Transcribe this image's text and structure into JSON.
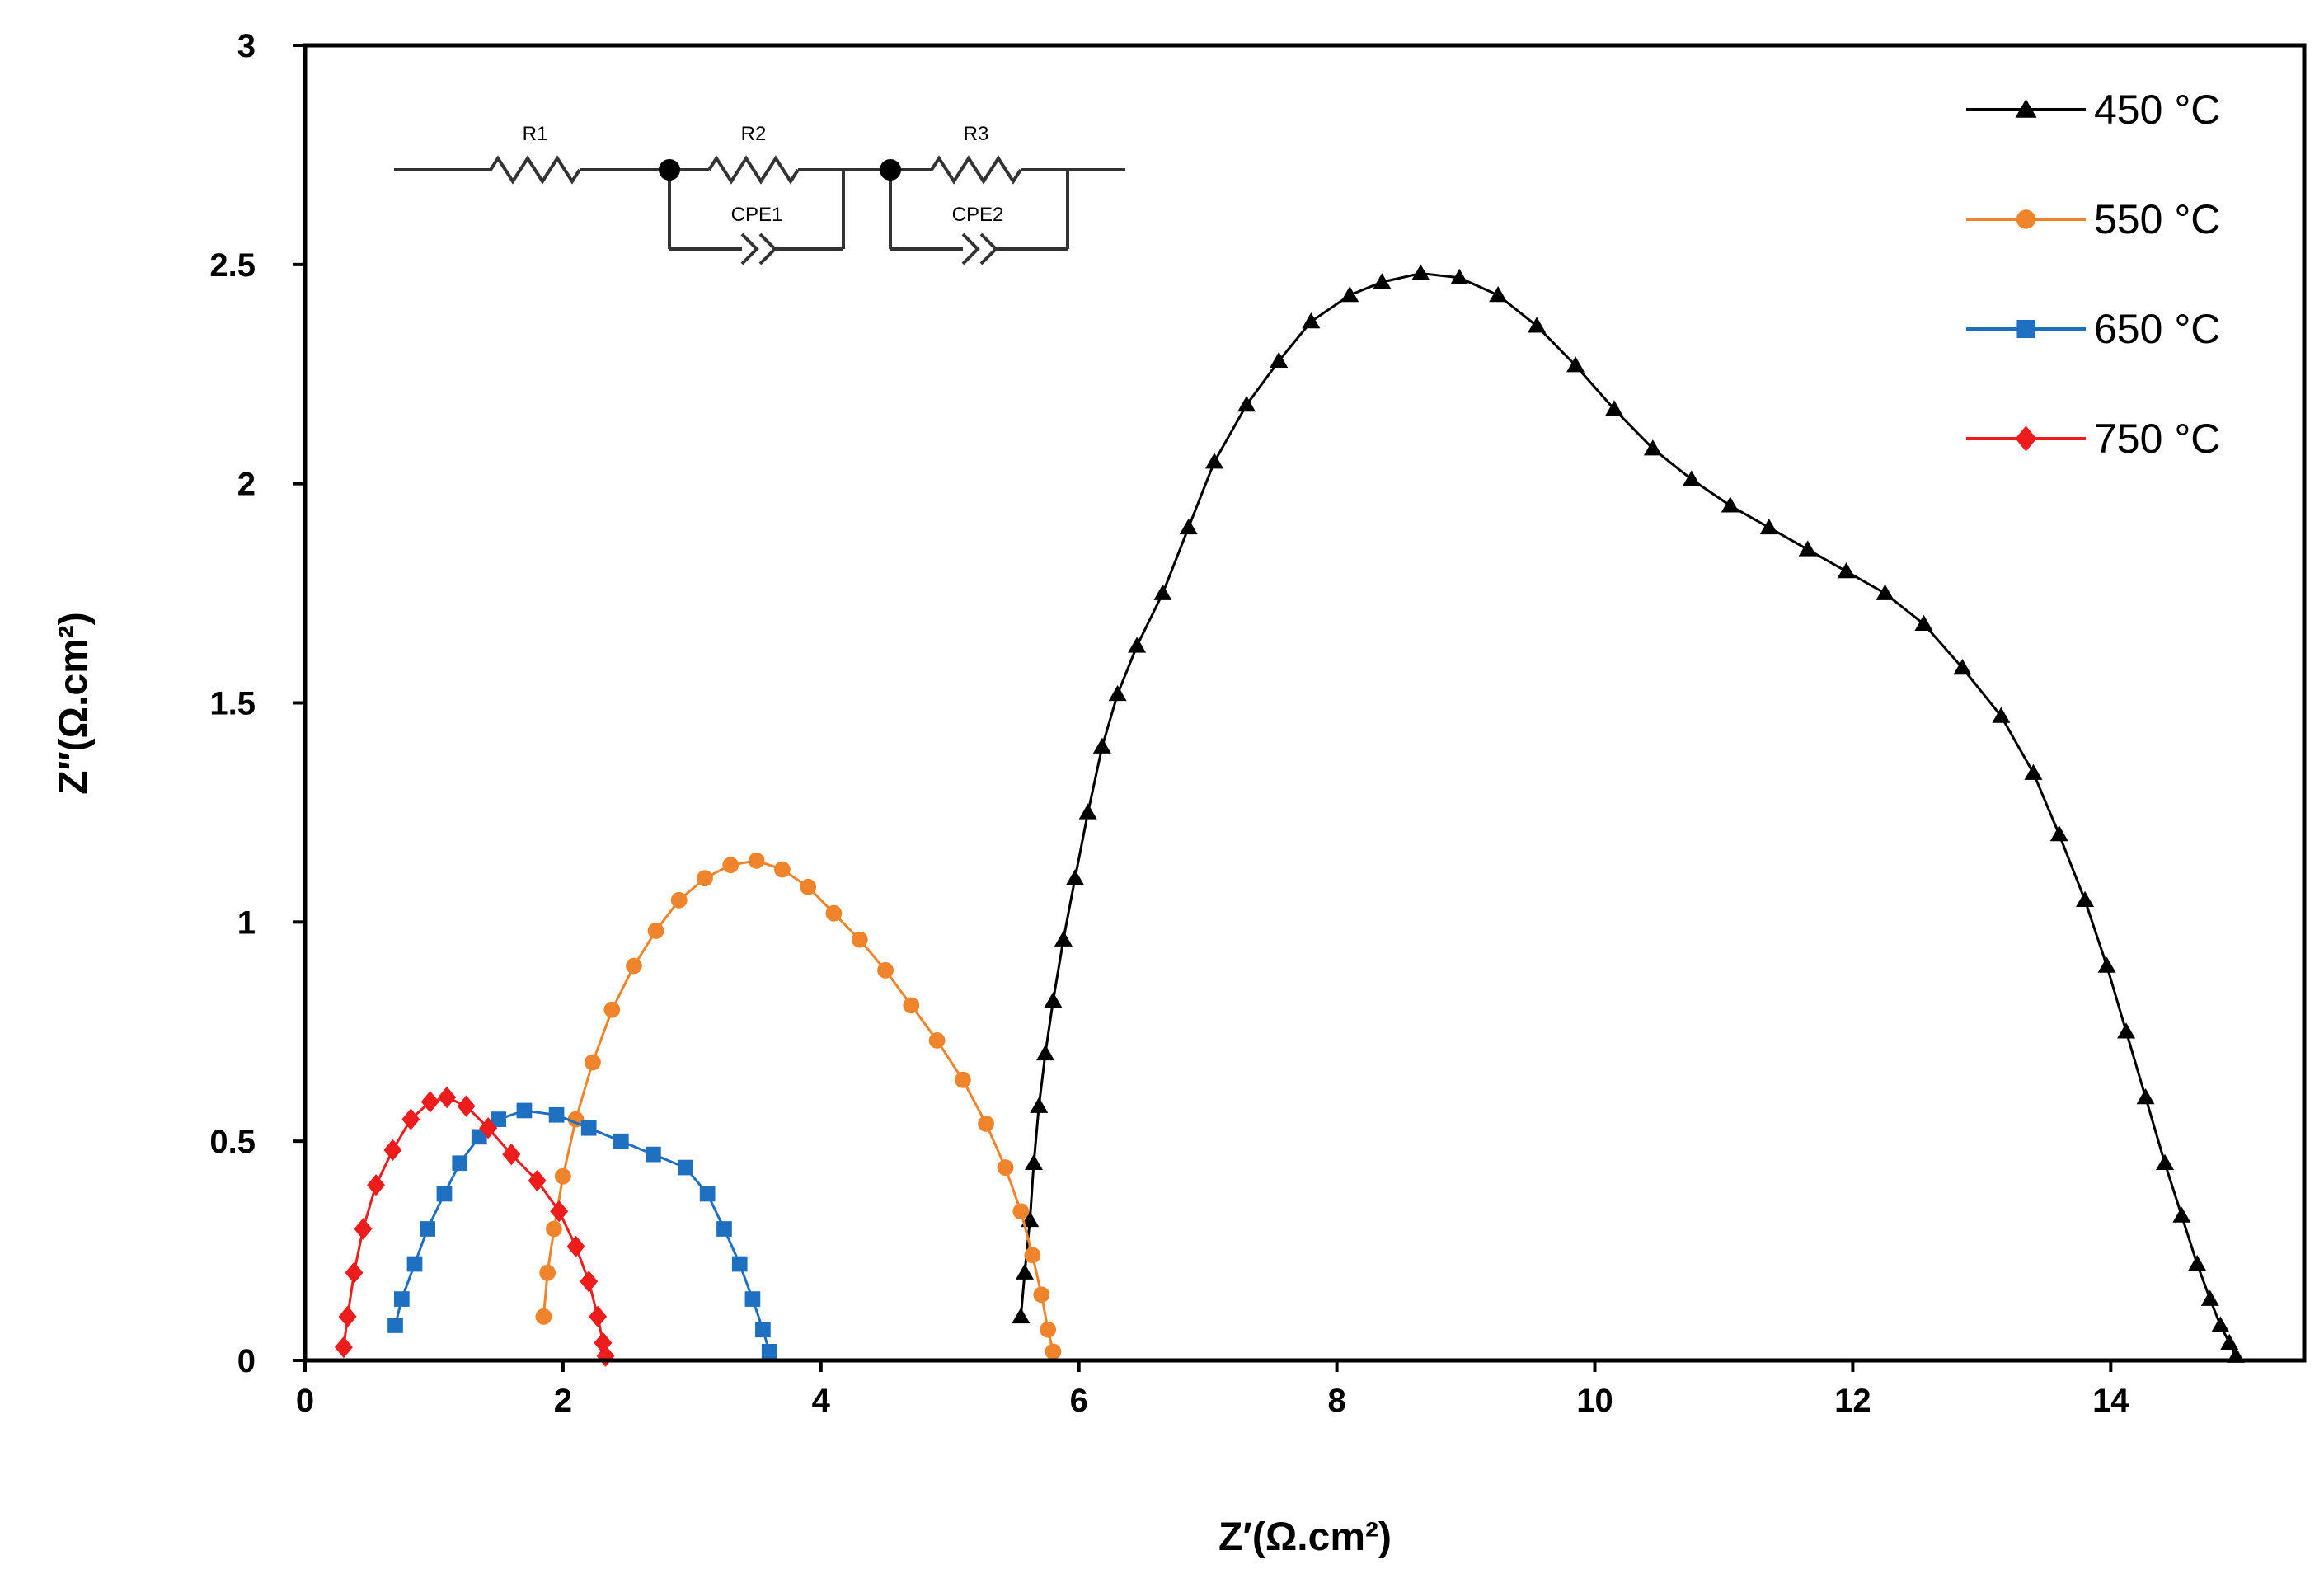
{
  "chart_data": {
    "type": "scatter",
    "xlabel": "Z′(Ω.cm²)",
    "ylabel": "Z″(Ω.cm²)",
    "xlim": [
      0,
      15.5
    ],
    "ylim": [
      0,
      3
    ],
    "x_ticks": [
      0,
      2,
      4,
      6,
      8,
      10,
      12,
      14
    ],
    "y_ticks": [
      0,
      0.5,
      1,
      1.5,
      2,
      2.5,
      3
    ],
    "x_tick_labels": [
      "0",
      "2",
      "4",
      "6",
      "8",
      "10",
      "12",
      "14"
    ],
    "y_tick_labels": [
      "0",
      "0.5",
      "1",
      "1.5",
      "2",
      "2.5",
      "3"
    ],
    "grid": false,
    "legend_position": "top-right",
    "series": [
      {
        "name": "450 °C",
        "color": "#000000",
        "marker": "triangle",
        "points": [
          [
            5.55,
            0.1
          ],
          [
            5.58,
            0.2
          ],
          [
            5.62,
            0.32
          ],
          [
            5.65,
            0.45
          ],
          [
            5.69,
            0.58
          ],
          [
            5.74,
            0.7
          ],
          [
            5.8,
            0.82
          ],
          [
            5.88,
            0.96
          ],
          [
            5.97,
            1.1
          ],
          [
            6.07,
            1.25
          ],
          [
            6.18,
            1.4
          ],
          [
            6.3,
            1.52
          ],
          [
            6.45,
            1.63
          ],
          [
            6.65,
            1.75
          ],
          [
            6.85,
            1.9
          ],
          [
            7.05,
            2.05
          ],
          [
            7.3,
            2.18
          ],
          [
            7.55,
            2.28
          ],
          [
            7.8,
            2.37
          ],
          [
            8.1,
            2.43
          ],
          [
            8.35,
            2.46
          ],
          [
            8.65,
            2.48
          ],
          [
            8.95,
            2.47
          ],
          [
            9.25,
            2.43
          ],
          [
            9.55,
            2.36
          ],
          [
            9.85,
            2.27
          ],
          [
            10.15,
            2.17
          ],
          [
            10.45,
            2.08
          ],
          [
            10.75,
            2.01
          ],
          [
            11.05,
            1.95
          ],
          [
            11.35,
            1.9
          ],
          [
            11.65,
            1.85
          ],
          [
            11.95,
            1.8
          ],
          [
            12.25,
            1.75
          ],
          [
            12.55,
            1.68
          ],
          [
            12.85,
            1.58
          ],
          [
            13.15,
            1.47
          ],
          [
            13.4,
            1.34
          ],
          [
            13.6,
            1.2
          ],
          [
            13.8,
            1.05
          ],
          [
            13.97,
            0.9
          ],
          [
            14.12,
            0.75
          ],
          [
            14.27,
            0.6
          ],
          [
            14.42,
            0.45
          ],
          [
            14.55,
            0.33
          ],
          [
            14.67,
            0.22
          ],
          [
            14.77,
            0.14
          ],
          [
            14.85,
            0.08
          ],
          [
            14.92,
            0.04
          ],
          [
            14.97,
            0.01
          ]
        ]
      },
      {
        "name": "550 °C",
        "color": "#f0842c",
        "marker": "circle",
        "points": [
          [
            1.85,
            0.1
          ],
          [
            1.88,
            0.2
          ],
          [
            1.93,
            0.3
          ],
          [
            2.0,
            0.42
          ],
          [
            2.1,
            0.55
          ],
          [
            2.23,
            0.68
          ],
          [
            2.38,
            0.8
          ],
          [
            2.55,
            0.9
          ],
          [
            2.72,
            0.98
          ],
          [
            2.9,
            1.05
          ],
          [
            3.1,
            1.1
          ],
          [
            3.3,
            1.13
          ],
          [
            3.5,
            1.14
          ],
          [
            3.7,
            1.12
          ],
          [
            3.9,
            1.08
          ],
          [
            4.1,
            1.02
          ],
          [
            4.3,
            0.96
          ],
          [
            4.5,
            0.89
          ],
          [
            4.7,
            0.81
          ],
          [
            4.9,
            0.73
          ],
          [
            5.1,
            0.64
          ],
          [
            5.28,
            0.54
          ],
          [
            5.43,
            0.44
          ],
          [
            5.55,
            0.34
          ],
          [
            5.64,
            0.24
          ],
          [
            5.71,
            0.15
          ],
          [
            5.76,
            0.07
          ],
          [
            5.8,
            0.02
          ]
        ]
      },
      {
        "name": "650 °C",
        "color": "#1e6fbf",
        "marker": "square",
        "points": [
          [
            0.7,
            0.08
          ],
          [
            0.75,
            0.14
          ],
          [
            0.85,
            0.22
          ],
          [
            0.95,
            0.3
          ],
          [
            1.08,
            0.38
          ],
          [
            1.2,
            0.45
          ],
          [
            1.35,
            0.51
          ],
          [
            1.5,
            0.55
          ],
          [
            1.7,
            0.57
          ],
          [
            1.95,
            0.56
          ],
          [
            2.2,
            0.53
          ],
          [
            2.45,
            0.5
          ],
          [
            2.7,
            0.47
          ],
          [
            2.95,
            0.44
          ],
          [
            3.12,
            0.38
          ],
          [
            3.25,
            0.3
          ],
          [
            3.37,
            0.22
          ],
          [
            3.47,
            0.14
          ],
          [
            3.55,
            0.07
          ],
          [
            3.6,
            0.02
          ]
        ]
      },
      {
        "name": "750 °C",
        "color": "#ee1c1c",
        "marker": "diamond",
        "points": [
          [
            0.3,
            0.03
          ],
          [
            0.33,
            0.1
          ],
          [
            0.38,
            0.2
          ],
          [
            0.45,
            0.3
          ],
          [
            0.55,
            0.4
          ],
          [
            0.68,
            0.48
          ],
          [
            0.82,
            0.55
          ],
          [
            0.97,
            0.59
          ],
          [
            1.1,
            0.6
          ],
          [
            1.25,
            0.58
          ],
          [
            1.42,
            0.53
          ],
          [
            1.6,
            0.47
          ],
          [
            1.8,
            0.41
          ],
          [
            1.97,
            0.34
          ],
          [
            2.1,
            0.26
          ],
          [
            2.2,
            0.18
          ],
          [
            2.27,
            0.1
          ],
          [
            2.31,
            0.04
          ],
          [
            2.33,
            0.01
          ]
        ]
      }
    ],
    "inset_circuit": {
      "labels": [
        "R1",
        "R2",
        "R3",
        "CPE1",
        "CPE2"
      ]
    }
  }
}
